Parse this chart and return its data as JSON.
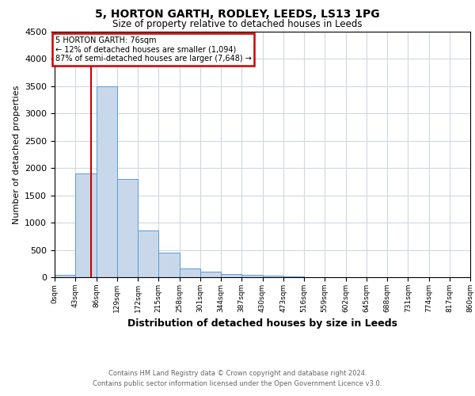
{
  "title1": "5, HORTON GARTH, RODLEY, LEEDS, LS13 1PG",
  "title2": "Size of property relative to detached houses in Leeds",
  "xlabel": "Distribution of detached houses by size in Leeds",
  "ylabel": "Number of detached properties",
  "bin_edges": [
    0,
    43,
    86,
    129,
    172,
    215,
    258,
    301,
    344,
    387,
    430,
    473,
    516,
    559,
    602,
    645,
    688,
    731,
    774,
    817,
    860
  ],
  "bar_heights": [
    50,
    1900,
    3500,
    1800,
    850,
    450,
    160,
    100,
    60,
    40,
    30,
    20,
    0,
    0,
    0,
    0,
    0,
    0,
    0,
    0
  ],
  "bar_color": "#c8d8ea",
  "bar_edge_color": "#5b9bd5",
  "property_size": 76,
  "annotation_title": "5 HORTON GARTH: 76sqm",
  "annotation_line1": "← 12% of detached houses are smaller (1,094)",
  "annotation_line2": "87% of semi-detached houses are larger (7,648) →",
  "annotation_box_facecolor": "#ffffff",
  "annotation_box_edgecolor": "#cc0000",
  "vline_color": "#cc0000",
  "ylim": [
    0,
    4500
  ],
  "xlim": [
    0,
    860
  ],
  "bin_width": 43,
  "tick_labels": [
    "0sqm",
    "43sqm",
    "86sqm",
    "129sqm",
    "172sqm",
    "215sqm",
    "258sqm",
    "301sqm",
    "344sqm",
    "387sqm",
    "430sqm",
    "473sqm",
    "516sqm",
    "559sqm",
    "602sqm",
    "645sqm",
    "688sqm",
    "731sqm",
    "774sqm",
    "817sqm",
    "860sqm"
  ],
  "footnote1": "Contains HM Land Registry data © Crown copyright and database right 2024.",
  "footnote2": "Contains public sector information licensed under the Open Government Licence v3.0.",
  "background_color": "#ffffff",
  "grid_color": "#d0d8e0",
  "title1_fontsize": 10,
  "title2_fontsize": 8.5,
  "xlabel_fontsize": 9,
  "ylabel_fontsize": 8,
  "tick_fontsize": 6.5,
  "footnote_fontsize": 6,
  "footnote_color": "#666666",
  "annotation_fontsize": 7
}
